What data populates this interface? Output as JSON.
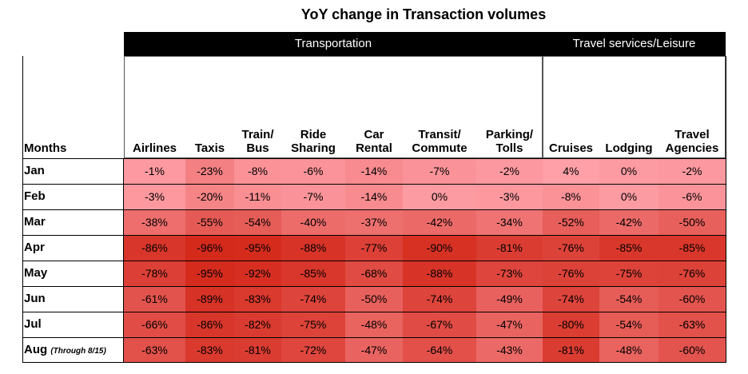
{
  "chart_data": {
    "type": "heatmap",
    "title": "YoY change in Transaction volumes",
    "row_header": "Months",
    "groups": [
      {
        "name": "Transportation",
        "span": 7
      },
      {
        "name": "Travel services/Leisure",
        "span": 3
      }
    ],
    "columns": [
      [
        "Airlines"
      ],
      [
        "Taxis"
      ],
      [
        "Train/",
        "Bus"
      ],
      [
        "Ride",
        "Sharing"
      ],
      [
        "Car",
        "Rental"
      ],
      [
        "Transit/",
        "Commute"
      ],
      [
        "Parking/",
        "Tolls"
      ],
      [
        "Cruises"
      ],
      [
        "Lodging"
      ],
      [
        "Travel",
        "Agencies"
      ]
    ],
    "rows": [
      {
        "label": "Jan",
        "note": "",
        "values": [
          -1,
          -23,
          -8,
          -6,
          -14,
          -7,
          -2,
          4,
          0,
          -2
        ]
      },
      {
        "label": "Feb",
        "note": "",
        "values": [
          -3,
          -20,
          -11,
          -7,
          -14,
          0,
          -3,
          -8,
          0,
          -6
        ]
      },
      {
        "label": "Mar",
        "note": "",
        "values": [
          -38,
          -55,
          -54,
          -40,
          -37,
          -42,
          -34,
          -52,
          -42,
          -50
        ]
      },
      {
        "label": "Apr",
        "note": "",
        "values": [
          -86,
          -96,
          -95,
          -88,
          -77,
          -90,
          -81,
          -76,
          -85,
          -85
        ]
      },
      {
        "label": "May",
        "note": "",
        "values": [
          -78,
          -95,
          -92,
          -85,
          -68,
          -88,
          -73,
          -76,
          -75,
          -76
        ]
      },
      {
        "label": "Jun",
        "note": "",
        "values": [
          -61,
          -89,
          -83,
          -74,
          -50,
          -74,
          -49,
          -74,
          -54,
          -60
        ]
      },
      {
        "label": "Jul",
        "note": "",
        "values": [
          -66,
          -86,
          -82,
          -75,
          -48,
          -67,
          -47,
          -80,
          -54,
          -63
        ]
      },
      {
        "label": "Aug",
        "note": "(Through 8/15)",
        "values": [
          -63,
          -83,
          -81,
          -72,
          -47,
          -64,
          -43,
          -81,
          -48,
          -60
        ]
      }
    ],
    "value_suffix": "%",
    "color_scale": {
      "low": "#d42a1c",
      "high": "#ffa0a8"
    }
  }
}
